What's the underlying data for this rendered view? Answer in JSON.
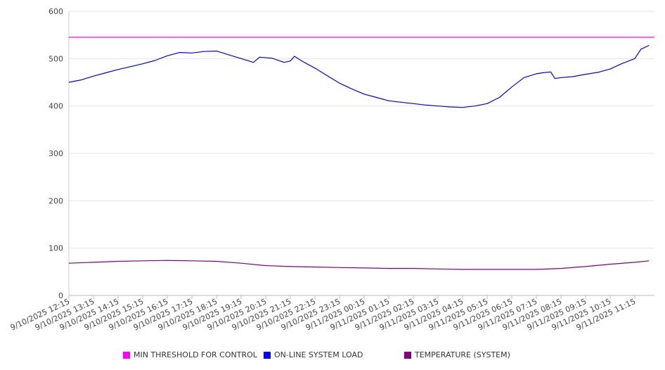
{
  "chart_data": {
    "type": "line",
    "title": "",
    "xlabel": "",
    "ylabel": "",
    "ylim": [
      0,
      600
    ],
    "yticks": [
      0,
      100,
      200,
      300,
      400,
      500,
      600
    ],
    "grid": true,
    "legend_position": "bottom",
    "x_tick_labels": [
      "9/10/2025 12:15",
      "9/10/2025 13:15",
      "9/10/2025 14:15",
      "9/10/2025 15:15",
      "9/10/2025 16:15",
      "9/10/2025 17:15",
      "9/10/2025 18:15",
      "9/10/2025 19:15",
      "9/10/2025 20:15",
      "9/10/2025 21:15",
      "9/10/2025 22:15",
      "9/10/2025 23:15",
      "9/11/2025 00:15",
      "9/11/2025 01:15",
      "9/11/2025 02:15",
      "9/11/2025 03:15",
      "9/11/2025 04:15",
      "9/11/2025 05:15",
      "9/11/2025 06:15",
      "9/11/2025 07:15",
      "9/11/2025 08:15",
      "9/11/2025 09:15",
      "9/11/2025 10:15",
      "9/11/2025 11:15"
    ],
    "series": [
      {
        "name": "MIN THRESHOLD FOR CONTROL",
        "color": "#ff00ff",
        "points": [
          [
            "9/10/2025 12:15",
            545
          ],
          [
            "9/11/2025 11:15",
            545
          ]
        ]
      },
      {
        "name": "ON-LINE SYSTEM LOAD",
        "color": "#0000ee",
        "points": [
          [
            "9/10/2025 12:15",
            450
          ],
          [
            "9/10/2025 12:45",
            455
          ],
          [
            "9/10/2025 13:15",
            463
          ],
          [
            "9/10/2025 13:45",
            470
          ],
          [
            "9/10/2025 14:15",
            477
          ],
          [
            "9/10/2025 14:45",
            483
          ],
          [
            "9/10/2025 15:15",
            489
          ],
          [
            "9/10/2025 15:45",
            496
          ],
          [
            "9/10/2025 16:15",
            506
          ],
          [
            "9/10/2025 16:45",
            513
          ],
          [
            "9/10/2025 17:15",
            512
          ],
          [
            "9/10/2025 17:45",
            515
          ],
          [
            "9/10/2025 18:15",
            516
          ],
          [
            "9/10/2025 18:45",
            508
          ],
          [
            "9/10/2025 19:15",
            500
          ],
          [
            "9/10/2025 19:45",
            492
          ],
          [
            "9/10/2025 20:00",
            503
          ],
          [
            "9/10/2025 20:30",
            501
          ],
          [
            "9/10/2025 21:00",
            492
          ],
          [
            "9/10/2025 21:15",
            495
          ],
          [
            "9/10/2025 21:25",
            505
          ],
          [
            "9/10/2025 21:45",
            494
          ],
          [
            "9/10/2025 22:15",
            480
          ],
          [
            "9/10/2025 22:45",
            464
          ],
          [
            "9/10/2025 23:15",
            448
          ],
          [
            "9/10/2025 23:45",
            436
          ],
          [
            "9/11/2025 00:15",
            425
          ],
          [
            "9/11/2025 00:45",
            418
          ],
          [
            "9/11/2025 01:15",
            411
          ],
          [
            "9/11/2025 01:45",
            408
          ],
          [
            "9/11/2025 02:15",
            405
          ],
          [
            "9/11/2025 02:45",
            402
          ],
          [
            "9/11/2025 03:15",
            400
          ],
          [
            "9/11/2025 03:45",
            398
          ],
          [
            "9/11/2025 04:15",
            397
          ],
          [
            "9/11/2025 04:45",
            400
          ],
          [
            "9/11/2025 05:15",
            405
          ],
          [
            "9/11/2025 05:45",
            418
          ],
          [
            "9/11/2025 06:15",
            440
          ],
          [
            "9/11/2025 06:45",
            460
          ],
          [
            "9/11/2025 07:15",
            468
          ],
          [
            "9/11/2025 07:30",
            470
          ],
          [
            "9/11/2025 07:50",
            472
          ],
          [
            "9/11/2025 08:00",
            458
          ],
          [
            "9/11/2025 08:15",
            460
          ],
          [
            "9/11/2025 08:45",
            462
          ],
          [
            "9/11/2025 09:15",
            467
          ],
          [
            "9/11/2025 09:45",
            471
          ],
          [
            "9/11/2025 10:15",
            478
          ],
          [
            "9/11/2025 10:45",
            490
          ],
          [
            "9/11/2025 11:15",
            500
          ],
          [
            "9/11/2025 11:30",
            520
          ],
          [
            "9/11/2025 11:50",
            528
          ]
        ]
      },
      {
        "name": "TEMPERATURE (SYSTEM)",
        "color": "#800080",
        "points": [
          [
            "9/10/2025 12:15",
            68
          ],
          [
            "9/10/2025 13:15",
            70
          ],
          [
            "9/10/2025 14:15",
            72
          ],
          [
            "9/10/2025 15:15",
            73
          ],
          [
            "9/10/2025 16:15",
            74
          ],
          [
            "9/10/2025 17:15",
            73
          ],
          [
            "9/10/2025 18:15",
            72
          ],
          [
            "9/10/2025 19:15",
            68
          ],
          [
            "9/10/2025 20:15",
            63
          ],
          [
            "9/10/2025 21:15",
            61
          ],
          [
            "9/10/2025 22:15",
            60
          ],
          [
            "9/10/2025 23:15",
            59
          ],
          [
            "9/11/2025 00:15",
            58
          ],
          [
            "9/11/2025 01:15",
            57
          ],
          [
            "9/11/2025 02:15",
            57
          ],
          [
            "9/11/2025 03:15",
            56
          ],
          [
            "9/11/2025 04:15",
            55
          ],
          [
            "9/11/2025 05:15",
            55
          ],
          [
            "9/11/2025 06:15",
            55
          ],
          [
            "9/11/2025 07:15",
            55
          ],
          [
            "9/11/2025 08:15",
            57
          ],
          [
            "9/11/2025 09:15",
            61
          ],
          [
            "9/11/2025 10:15",
            66
          ],
          [
            "9/11/2025 11:15",
            70
          ],
          [
            "9/11/2025 11:50",
            73
          ]
        ]
      }
    ]
  }
}
